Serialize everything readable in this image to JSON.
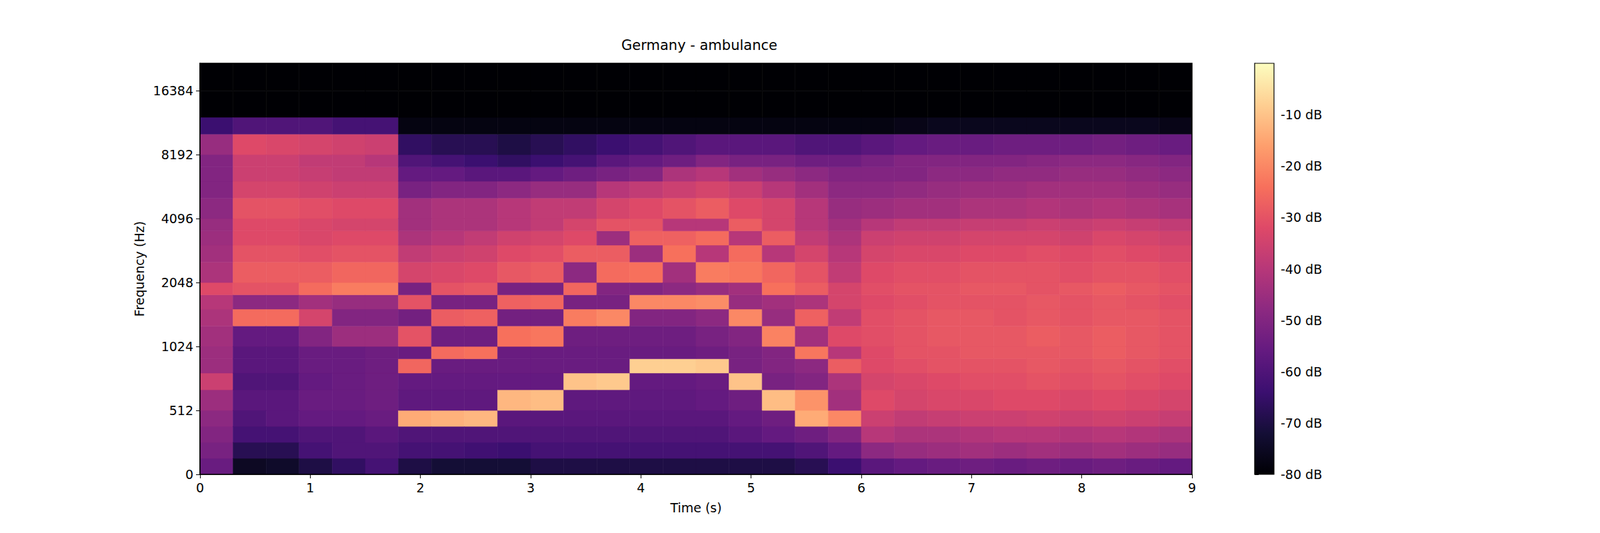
{
  "chart_data": {
    "type": "heatmap",
    "title": "Germany - ambulance",
    "x_label": "Time (s)",
    "y_label": "Frequency (Hz)",
    "xlim": [
      0,
      9
    ],
    "xticks": [
      0,
      1,
      2,
      3,
      4,
      5,
      6,
      7,
      8,
      9
    ],
    "ylim": [
      0,
      22050
    ],
    "yticks": [
      0,
      512,
      1024,
      2048,
      4096,
      8192,
      16384
    ],
    "log": "y",
    "grid": false,
    "time_edges": [
      0,
      0.3,
      0.6,
      0.9,
      1.2,
      1.5,
      1.8,
      2.1,
      2.4,
      2.7,
      3.0,
      3.3,
      3.6,
      3.9,
      4.2,
      4.5,
      4.8,
      5.1,
      5.4,
      5.7,
      6.0,
      6.3,
      6.6,
      6.9,
      7.2,
      7.5,
      7.8,
      8.1,
      8.4,
      8.7,
      9.0
    ],
    "freq_edges": [
      0,
      128,
      256,
      384,
      512,
      640,
      768,
      896,
      1024,
      1280,
      1536,
      1792,
      2048,
      2560,
      3072,
      3584,
      4096,
      5120,
      6144,
      7168,
      8192,
      10240,
      12288,
      16384,
      22050
    ],
    "cells_db": [
      [
        -55,
        -52,
        -50,
        -48,
        -45,
        -36,
        -45,
        -45,
        -44,
        -42,
        -40,
        -32,
        -42,
        -44,
        -45,
        -46,
        -48,
        -50,
        -50,
        -50,
        -46,
        -64,
        -80,
        -80
      ],
      [
        -75,
        -68,
        -62,
        -60,
        -58,
        -60,
        -58,
        -58,
        -56,
        -25,
        -48,
        -30,
        -28,
        -30,
        -32,
        -32,
        -30,
        -34,
        -36,
        -36,
        -32,
        -60,
        -80,
        -80
      ],
      [
        -74,
        -68,
        -62,
        -58,
        -58,
        -60,
        -58,
        -58,
        -56,
        -25,
        -48,
        -30,
        -28,
        -30,
        -32,
        -32,
        -30,
        -34,
        -36,
        -36,
        -33,
        -60,
        -80,
        -80
      ],
      [
        -70,
        -62,
        -60,
        -56,
        -55,
        -56,
        -55,
        -55,
        -50,
        -34,
        -44,
        -25,
        -28,
        -31,
        -33,
        -33,
        -31,
        -35,
        -37,
        -38,
        -34,
        -60,
        -80,
        -80
      ],
      [
        -66,
        -60,
        -60,
        -56,
        -55,
        -55,
        -55,
        -55,
        -45,
        -50,
        -46,
        -22,
        -26,
        -30,
        -32,
        -34,
        -32,
        -36,
        -38,
        -38,
        -35,
        -62,
        -80,
        -80
      ],
      [
        -62,
        -60,
        -58,
        -55,
        -54,
        -54,
        -54,
        -54,
        -45,
        -50,
        -46,
        -22,
        -26,
        -30,
        -32,
        -34,
        -32,
        -36,
        -38,
        -40,
        -36,
        -62,
        -80,
        -80
      ],
      [
        -70,
        -62,
        -60,
        -14,
        -57,
        -56,
        -26,
        -55,
        -30,
        -53,
        -30,
        -52,
        -34,
        -38,
        -42,
        -44,
        -44,
        -52,
        -56,
        -60,
        -66,
        -78,
        -80,
        -80
      ],
      [
        -72,
        -62,
        -60,
        -13,
        -57,
        -56,
        -55,
        -25,
        -54,
        -28,
        -52,
        -30,
        -33,
        -36,
        -40,
        -42,
        -42,
        -50,
        -56,
        -62,
        -68,
        -78,
        -80,
        -80
      ],
      [
        -72,
        -63,
        -60,
        -12,
        -57,
        -56,
        -55,
        -24,
        -54,
        -27,
        -52,
        -29,
        -32,
        -35,
        -38,
        -42,
        -42,
        -50,
        -58,
        -64,
        -68,
        -78,
        -80,
        -80
      ],
      [
        -72,
        -64,
        -60,
        -58,
        -12,
        -56,
        -55,
        -55,
        -24,
        -53,
        -27,
        -52,
        -29,
        -32,
        -35,
        -40,
        -40,
        -48,
        -58,
        -66,
        -70,
        -78,
        -80,
        -80
      ],
      [
        -70,
        -62,
        -60,
        -58,
        -11,
        -56,
        -55,
        -55,
        -23,
        -53,
        -26,
        -52,
        -28,
        -31,
        -34,
        -38,
        -38,
        -46,
        -56,
        -64,
        -68,
        -78,
        -80,
        -80
      ],
      [
        -70,
        -62,
        -60,
        -58,
        -57,
        -10,
        -55,
        -55,
        -54,
        -22,
        -52,
        -26,
        -48,
        -28,
        -32,
        -34,
        -38,
        -46,
        -54,
        -62,
        -66,
        -78,
        -80,
        -80
      ],
      [
        -70,
        -62,
        -60,
        -58,
        -57,
        -9,
        -55,
        -55,
        -54,
        -20,
        -52,
        -50,
        -25,
        -28,
        -45,
        -30,
        -34,
        -40,
        -52,
        -58,
        -64,
        -78,
        -80,
        -80
      ],
      [
        -70,
        -62,
        -60,
        -58,
        -57,
        -56,
        -8,
        -55,
        -54,
        -50,
        -20,
        -50,
        -24,
        -45,
        -27,
        -30,
        -32,
        -38,
        -50,
        -56,
        -62,
        -78,
        -80,
        -80
      ],
      [
        -70,
        -62,
        -60,
        -58,
        -57,
        -56,
        -8,
        -55,
        -54,
        -50,
        -20,
        -48,
        -44,
        -24,
        -27,
        -40,
        -30,
        -36,
        -42,
        -54,
        -60,
        -78,
        -80,
        -80
      ],
      [
        -70,
        -62,
        -60,
        -58,
        -56,
        -55,
        -9,
        -54,
        -52,
        -48,
        -19,
        -46,
        -22,
        -40,
        -25,
        -40,
        -28,
        -34,
        -40,
        -50,
        -58,
        -78,
        -80,
        -80
      ],
      [
        -70,
        -62,
        -58,
        -56,
        -54,
        -10,
        -52,
        -52,
        -50,
        -20,
        -46,
        -44,
        -23,
        -25,
        -40,
        -28,
        -32,
        -36,
        -44,
        -52,
        -58,
        -78,
        -80,
        -80
      ],
      [
        -70,
        -62,
        -56,
        -54,
        -11,
        -52,
        -50,
        -50,
        -21,
        -46,
        -44,
        -24,
        -26,
        -40,
        -28,
        -34,
        -34,
        -40,
        -46,
        -52,
        -58,
        -78,
        -80,
        -80
      ],
      [
        -68,
        -60,
        -54,
        -14,
        -18,
        -50,
        -48,
        -23,
        -44,
        -27,
        -42,
        -28,
        -30,
        -34,
        -38,
        -40,
        -40,
        -44,
        -48,
        -54,
        -60,
        -78,
        -80,
        -80
      ],
      [
        -64,
        -56,
        -50,
        -20,
        -44,
        -42,
        -28,
        -40,
        -32,
        -38,
        -34,
        -34,
        -38,
        -40,
        -42,
        -44,
        -46,
        -48,
        -50,
        -54,
        -60,
        -78,
        -80,
        -80
      ],
      [
        -58,
        -48,
        -40,
        -36,
        -32,
        -34,
        -32,
        -32,
        -31,
        -31,
        -32,
        -31,
        -32,
        -34,
        -36,
        -40,
        -45,
        -48,
        -50,
        -52,
        -58,
        -78,
        -80,
        -80
      ],
      [
        -56,
        -46,
        -42,
        -38,
        -34,
        -33,
        -31,
        -30,
        -30,
        -30,
        -31,
        -30,
        -31,
        -33,
        -35,
        -38,
        -44,
        -47,
        -50,
        -50,
        -56,
        -77,
        -80,
        -80
      ],
      [
        -55,
        -45,
        -42,
        -37,
        -33,
        -32,
        -30,
        -30,
        -29,
        -29,
        -30,
        -30,
        -31,
        -33,
        -35,
        -38,
        -44,
        -46,
        -48,
        -50,
        -55,
        -76,
        -80,
        -80
      ],
      [
        -54,
        -44,
        -41,
        -36,
        -33,
        -31,
        -30,
        -29,
        -29,
        -29,
        -30,
        -29,
        -30,
        -32,
        -34,
        -37,
        -42,
        -45,
        -48,
        -50,
        -55,
        -76,
        -80,
        -80
      ],
      [
        -55,
        -45,
        -40,
        -36,
        -32,
        -31,
        -30,
        -29,
        -29,
        -30,
        -30,
        -29,
        -30,
        -32,
        -34,
        -37,
        -42,
        -45,
        -47,
        -50,
        -54,
        -76,
        -80,
        -80
      ],
      [
        -54,
        -44,
        -40,
        -35,
        -32,
        -30,
        -29,
        -29,
        -28,
        -29,
        -29,
        -30,
        -30,
        -31,
        -34,
        -36,
        -41,
        -44,
        -47,
        -49,
        -54,
        -76,
        -80,
        -80
      ],
      [
        -55,
        -45,
        -41,
        -36,
        -33,
        -31,
        -30,
        -29,
        -29,
        -30,
        -30,
        -29,
        -31,
        -32,
        -35,
        -37,
        -42,
        -44,
        -46,
        -48,
        -54,
        -76,
        -80,
        -80
      ],
      [
        -54,
        -44,
        -40,
        -35,
        -32,
        -30,
        -29,
        -28,
        -28,
        -29,
        -29,
        -28,
        -30,
        -31,
        -33,
        -36,
        -41,
        -44,
        -46,
        -48,
        -53,
        -76,
        -80,
        -80
      ],
      [
        -55,
        -45,
        -41,
        -36,
        -33,
        -31,
        -30,
        -29,
        -29,
        -29,
        -30,
        -29,
        -30,
        -32,
        -34,
        -37,
        -42,
        -45,
        -47,
        -49,
        -54,
        -76,
        -80,
        -80
      ],
      [
        -56,
        -46,
        -42,
        -37,
        -34,
        -32,
        -31,
        -30,
        -30,
        -30,
        -31,
        -30,
        -31,
        -33,
        -35,
        -38,
        -43,
        -46,
        -48,
        -50,
        -55,
        -77,
        -80,
        -80
      ]
    ],
    "colorbar": {
      "range": [
        -80,
        0
      ],
      "ticks": [
        {
          "value": -10,
          "label": "-10 dB"
        },
        {
          "value": -20,
          "label": "-20 dB"
        },
        {
          "value": -30,
          "label": "-30 dB"
        },
        {
          "value": -40,
          "label": "-40 dB"
        },
        {
          "value": -50,
          "label": "-50 dB"
        },
        {
          "value": -60,
          "label": "-60 dB"
        },
        {
          "value": -70,
          "label": "-70 dB"
        },
        {
          "value": -80,
          "label": "-80 dB"
        }
      ]
    }
  }
}
